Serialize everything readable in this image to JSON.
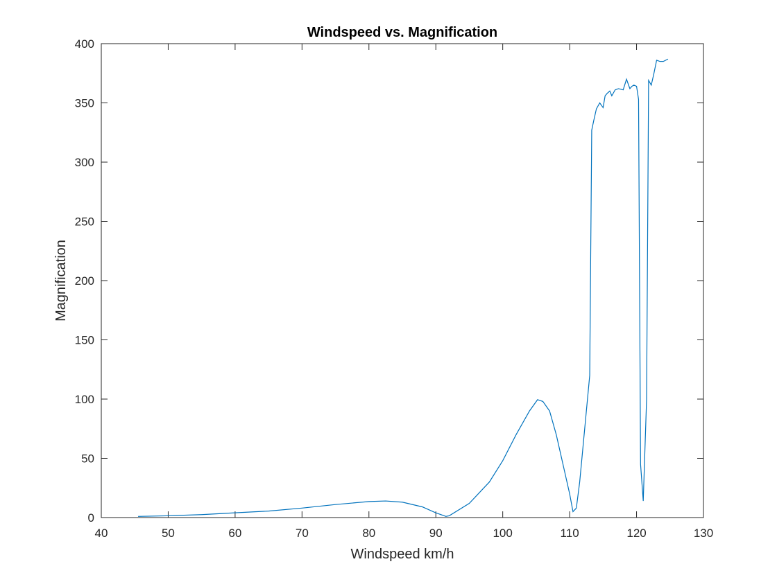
{
  "chart_data": {
    "type": "line",
    "title": "Windspeed vs. Magnification",
    "xlabel": "Windspeed km/h",
    "ylabel": "Magnification",
    "xlim": [
      40,
      130
    ],
    "ylim": [
      0,
      400
    ],
    "xticks": [
      40,
      50,
      60,
      70,
      80,
      90,
      100,
      110,
      120,
      130
    ],
    "yticks": [
      0,
      50,
      100,
      150,
      200,
      250,
      300,
      350,
      400
    ],
    "grid": false,
    "line_color": "#0072BD",
    "series": [
      {
        "x": [
          45.5,
          50,
          55,
          60,
          65,
          70,
          75,
          80,
          82.5,
          85,
          88,
          90,
          91.5,
          92,
          95,
          98,
          100,
          102,
          104,
          105.2,
          106,
          107,
          108,
          109,
          110,
          110.5,
          111,
          111.5,
          112,
          112.5,
          113,
          113.3,
          113.6,
          114,
          114.5,
          115,
          115.3,
          115.6,
          116,
          116.3,
          116.8,
          117.3,
          118,
          118.5,
          119,
          119.3,
          119.6,
          120,
          120.3,
          120.6,
          121,
          121.5,
          121.8,
          122.2,
          122.6,
          123,
          123.5,
          124,
          124.7
        ],
        "y": [
          1,
          1.5,
          2.5,
          4,
          5.5,
          8,
          11,
          13.5,
          14,
          13,
          9,
          4,
          1,
          1.5,
          12,
          30,
          48,
          70,
          90,
          99.5,
          98,
          90,
          70,
          45,
          20,
          5,
          8,
          30,
          60,
          90,
          120,
          327,
          335,
          345,
          350,
          346,
          356,
          358,
          360,
          356,
          361,
          362,
          361,
          370,
          362,
          364,
          365,
          364,
          353,
          45,
          14,
          100,
          369,
          365,
          375,
          386,
          385,
          385,
          387
        ]
      }
    ]
  }
}
